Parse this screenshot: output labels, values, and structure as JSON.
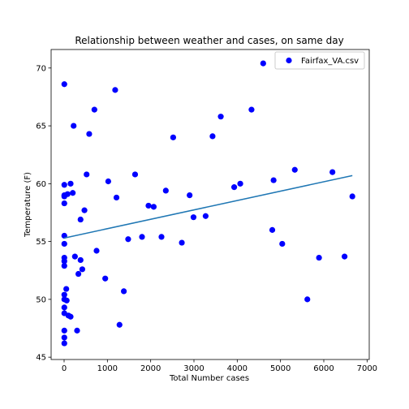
{
  "chart_data": {
    "type": "scatter",
    "title": "Relationship between weather and cases, on same day",
    "xlabel": "Total Number cases",
    "ylabel": "Temperature (F)",
    "xlim": [
      -300,
      7050
    ],
    "ylim": [
      44.8,
      71.6
    ],
    "xticks": [
      0,
      1000,
      2000,
      3000,
      4000,
      5000,
      6000,
      7000
    ],
    "yticks": [
      45,
      50,
      55,
      60,
      65,
      70
    ],
    "grid": false,
    "legend": {
      "position": "top-right",
      "entries": [
        "Fairfax_VA.csv"
      ]
    },
    "colors": {
      "points": "#0000ff",
      "trend": "#1f77b4"
    },
    "series": [
      {
        "name": "Fairfax_VA.csv",
        "points": [
          [
            5,
            68.6
          ],
          [
            5,
            59.9
          ],
          [
            5,
            59.0
          ],
          [
            5,
            58.9
          ],
          [
            5,
            58.3
          ],
          [
            5,
            55.5
          ],
          [
            5,
            54.8
          ],
          [
            5,
            53.6
          ],
          [
            5,
            53.3
          ],
          [
            5,
            52.9
          ],
          [
            5,
            50.4
          ],
          [
            5,
            50.0
          ],
          [
            5,
            49.3
          ],
          [
            5,
            48.8
          ],
          [
            5,
            47.3
          ],
          [
            5,
            46.7
          ],
          [
            5,
            46.2
          ],
          [
            50,
            50.9
          ],
          [
            60,
            49.9
          ],
          [
            80,
            59.1
          ],
          [
            100,
            48.6
          ],
          [
            150,
            48.5
          ],
          [
            150,
            60.0
          ],
          [
            200,
            59.2
          ],
          [
            220,
            65.0
          ],
          [
            250,
            53.7
          ],
          [
            300,
            47.3
          ],
          [
            330,
            52.2
          ],
          [
            380,
            53.4
          ],
          [
            380,
            56.9
          ],
          [
            420,
            52.6
          ],
          [
            470,
            57.7
          ],
          [
            520,
            60.8
          ],
          [
            580,
            64.3
          ],
          [
            700,
            66.4
          ],
          [
            750,
            54.2
          ],
          [
            950,
            51.8
          ],
          [
            1020,
            60.2
          ],
          [
            1180,
            68.1
          ],
          [
            1210,
            58.8
          ],
          [
            1280,
            47.8
          ],
          [
            1380,
            50.7
          ],
          [
            1480,
            55.2
          ],
          [
            1640,
            60.8
          ],
          [
            1800,
            55.4
          ],
          [
            1950,
            58.1
          ],
          [
            2070,
            58.0
          ],
          [
            2250,
            55.4
          ],
          [
            2350,
            59.4
          ],
          [
            2520,
            64.0
          ],
          [
            2720,
            54.9
          ],
          [
            2900,
            59.0
          ],
          [
            2990,
            57.1
          ],
          [
            3270,
            57.2
          ],
          [
            3430,
            64.1
          ],
          [
            3620,
            65.8
          ],
          [
            3930,
            59.7
          ],
          [
            4070,
            60.0
          ],
          [
            4330,
            66.4
          ],
          [
            4600,
            70.4
          ],
          [
            4810,
            56.0
          ],
          [
            4840,
            60.3
          ],
          [
            5040,
            54.8
          ],
          [
            5330,
            61.2
          ],
          [
            5620,
            50.0
          ],
          [
            5890,
            53.6
          ],
          [
            6200,
            61.0
          ],
          [
            6480,
            53.7
          ],
          [
            6660,
            58.9
          ]
        ]
      }
    ],
    "trendline": {
      "x": [
        0,
        6660
      ],
      "y": [
        55.3,
        60.7
      ]
    }
  }
}
